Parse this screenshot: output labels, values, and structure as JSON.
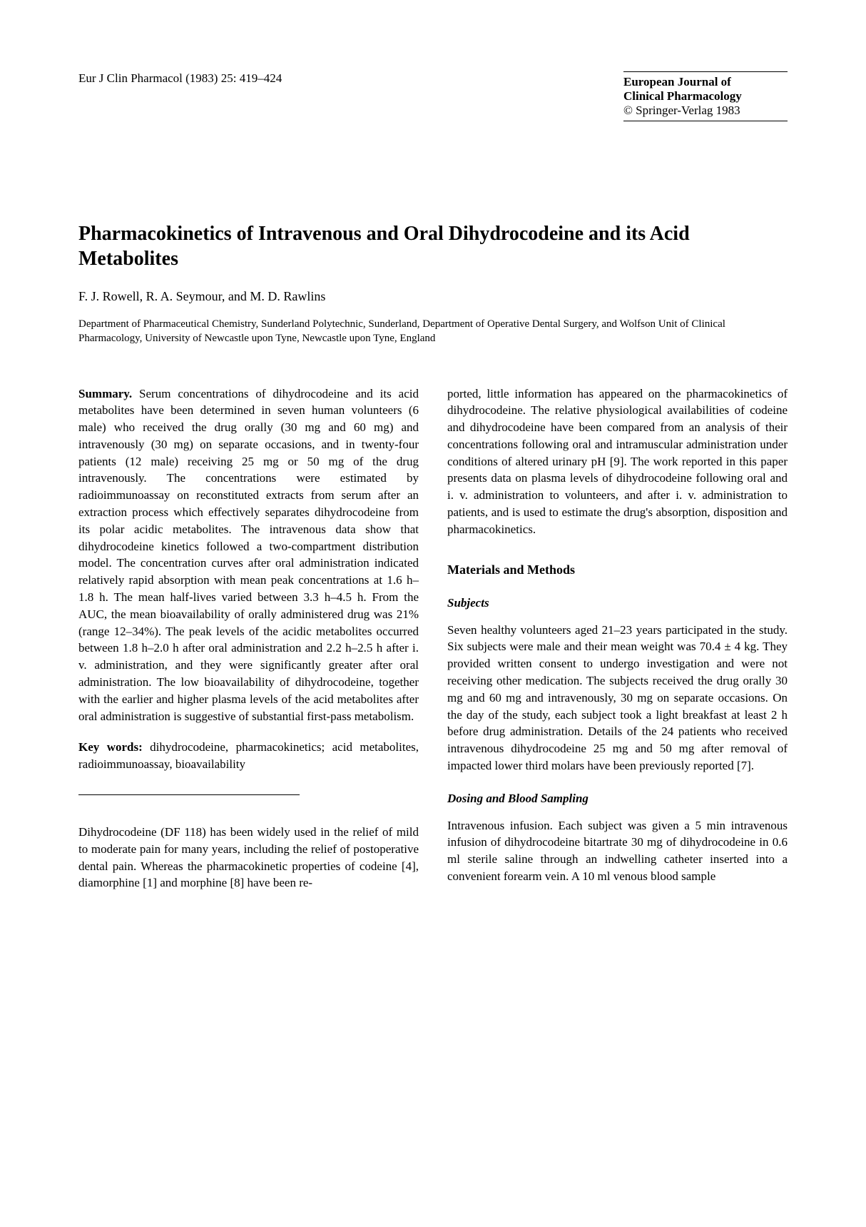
{
  "header": {
    "citation": "Eur J Clin Pharmacol (1983) 25: 419–424",
    "journal_line1": "European Journal of",
    "journal_line2": "Clinical Pharmacology",
    "copyright": "© Springer-Verlag 1983"
  },
  "article": {
    "title": "Pharmacokinetics of Intravenous and Oral Dihydrocodeine and its Acid Metabolites",
    "authors": "F. J. Rowell, R. A. Seymour, and M. D. Rawlins",
    "affiliation": "Department of Pharmaceutical Chemistry, Sunderland Polytechnic, Sunderland, Department of Operative Dental Surgery, and Wolfson Unit of Clinical Pharmacology, University of Newcastle upon Tyne, Newcastle upon Tyne, England"
  },
  "body": {
    "summary_label": "Summary.",
    "summary_text": " Serum concentrations of dihydrocodeine and its acid metabolites have been determined in seven human volunteers (6 male) who received the drug orally (30 mg and 60 mg) and intravenously (30 mg) on separate occasions, and in twenty-four patients (12 male) receiving 25 mg or 50 mg of the drug intravenously. The concentrations were estimated by radioimmunoassay on reconstituted extracts from serum after an extraction process which effectively separates dihydrocodeine from its polar acidic metabolites. The intravenous data show that dihydrocodeine kinetics followed a two-compartment distribution model. The concentration curves after oral administration indicated relatively rapid absorption with mean peak concentrations at 1.6 h–1.8 h. The mean half-lives varied between 3.3 h–4.5 h. From the AUC, the mean bioavailability of orally administered drug was 21% (range 12–34%). The peak levels of the acidic metabolites occurred between 1.8 h–2.0 h after oral administration and 2.2 h–2.5 h after i. v. administration, and they were significantly greater after oral administration. The low bioavailability of dihydrocodeine, together with the earlier and higher plasma levels of the acid metabolites after oral administration is suggestive of substantial first-pass metabolism.",
    "keywords_label": "Key words:",
    "keywords_text": " dihydrocodeine, pharmacokinetics; acid metabolites, radioimmunoassay, bioavailability",
    "intro_text": "Dihydrocodeine (DF 118) has been widely used in the relief of mild to moderate pain for many years, including the relief of postoperative dental pain. Whereas the pharmacokinetic properties of codeine [4], diamorphine [1] and morphine [8] have been re-",
    "intro_continuation": "ported, little information has appeared on the pharmacokinetics of dihydrocodeine. The relative physiological availabilities of codeine and dihydrocodeine have been compared from an analysis of their concentrations following oral and intramuscular administration under conditions of altered urinary pH [9]. The work reported in this paper presents data on plasma levels of dihydrocodeine following oral and i. v. administration to volunteers, and after i. v. administration to patients, and is used to estimate the drug's absorption, disposition and pharmacokinetics.",
    "materials_heading": "Materials and Methods",
    "subjects_heading": "Subjects",
    "subjects_text": "Seven healthy volunteers aged 21–23 years participated in the study. Six subjects were male and their mean weight was 70.4 ± 4 kg. They provided written consent to undergo investigation and were not receiving other medication. The subjects received the drug orally 30 mg and 60 mg and intravenously, 30 mg on separate occasions. On the day of the study, each subject took a light breakfast at least 2 h before drug administration. Details of the 24 patients who received intravenous dihydrocodeine 25 mg and 50 mg after removal of impacted lower third molars have been previously reported [7].",
    "dosing_heading": "Dosing and Blood Sampling",
    "dosing_text": "Intravenous infusion. Each subject was given a 5 min intravenous infusion of dihydrocodeine bitartrate 30 mg of dihydrocodeine in 0.6 ml sterile saline through an indwelling catheter inserted into a convenient forearm vein. A 10 ml venous blood sample"
  }
}
